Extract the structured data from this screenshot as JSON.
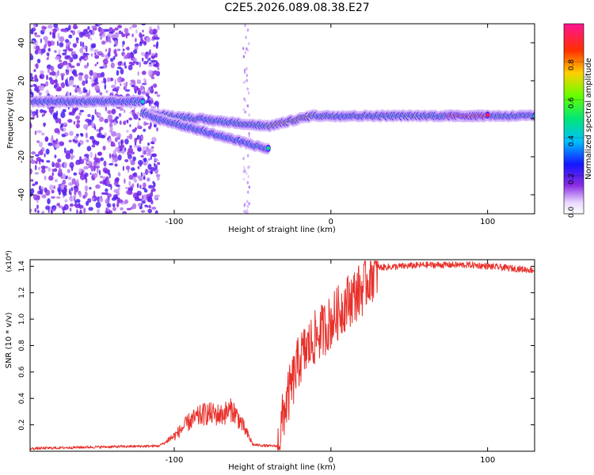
{
  "title": "C2E5.2026.089.08.38.E27",
  "colors": {
    "line": "#e8302a",
    "axis": "#000000"
  },
  "chart_data": [
    {
      "type": "heatmap",
      "name": "spectrogram",
      "xlabel": "Height of straight line (km)",
      "ylabel": "Frequency (Hz)",
      "xlim": [
        -192,
        130
      ],
      "ylim": [
        -50,
        50
      ],
      "xticks": [
        -100,
        0,
        100
      ],
      "yticks": [
        -40,
        -20,
        0,
        20,
        40
      ],
      "colorbar": {
        "label": "Normalized spectral amplitude",
        "range": [
          0,
          1
        ],
        "ticks": [
          0.0,
          0.2,
          0.4,
          0.6,
          0.8
        ]
      },
      "bands": [
        {
          "x_start": -190,
          "x_end": -120,
          "freq": 9,
          "amplitude": 0.45
        },
        {
          "x_start": -120,
          "x_end": -40,
          "freq_start": 3,
          "freq_end": -4,
          "amplitude": 0.5
        },
        {
          "x_start": -115,
          "x_end": -40,
          "freq_start": 1,
          "freq_end": -16,
          "amplitude": 0.45
        },
        {
          "x_start": -40,
          "x_end": -10,
          "freq_start": -4,
          "freq_end": 2,
          "amplitude": 0.7
        },
        {
          "x_start": -10,
          "x_end": 130,
          "freq": 1.5,
          "amplitude": 0.55
        },
        {
          "x_start": 75,
          "x_end": 100,
          "freq": 1.5,
          "amplitude": 0.9
        }
      ]
    },
    {
      "type": "line",
      "name": "snr",
      "xlabel": "Height of straight line (km)",
      "ylabel": "SNR (10 * v/v)",
      "scale_label": "(x10⁴)",
      "xlim": [
        -192,
        130
      ],
      "ylim": [
        0,
        1.45
      ],
      "xticks": [
        -100,
        0,
        100
      ],
      "yticks": [
        0.2,
        0.4,
        0.6,
        0.8,
        1.0,
        1.2,
        1.4
      ],
      "series": [
        {
          "name": "SNR",
          "x": [
            -192,
            -160,
            -110,
            -100,
            -90,
            -80,
            -70,
            -63,
            -58,
            -50,
            -40,
            -34,
            -30,
            -20,
            -10,
            0,
            10,
            20,
            25,
            30,
            60,
            90,
            110,
            130
          ],
          "y": [
            0.02,
            0.03,
            0.04,
            0.1,
            0.2,
            0.25,
            0.24,
            0.28,
            0.2,
            0.05,
            0.04,
            0.04,
            0.32,
            0.72,
            0.88,
            1.0,
            1.15,
            1.25,
            1.35,
            1.39,
            1.41,
            1.41,
            1.39,
            1.37
          ]
        }
      ]
    }
  ]
}
